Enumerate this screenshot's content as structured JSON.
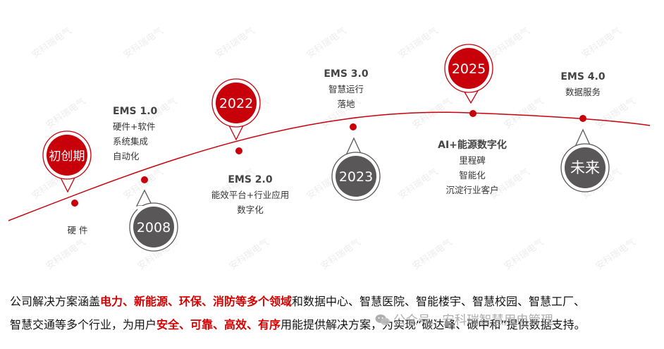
{
  "watermark": "安科瑞电气",
  "milestones": [
    {
      "badge": "初创期",
      "style": "red",
      "title": "",
      "lines": [
        "硬 件"
      ]
    },
    {
      "badge": "2008",
      "style": "gray",
      "title": "EMS 1.0",
      "lines": [
        "硬件+软件",
        "系统集成",
        "自动化"
      ]
    },
    {
      "badge": "2022",
      "style": "red",
      "title": "EMS 2.0",
      "lines": [
        "能效平台+行业应用",
        "数字化"
      ]
    },
    {
      "badge": "2023",
      "style": "gray",
      "title": "EMS 3.0",
      "lines": [
        "智慧运行",
        "落地"
      ]
    },
    {
      "badge": "2025",
      "style": "red",
      "title": "AI+能源数字化",
      "lines": [
        "里程碑",
        "智能化",
        "沉淀行业客户"
      ]
    },
    {
      "badge": "未来",
      "style": "gray",
      "title": "EMS 4.0",
      "lines": [
        "数据服务"
      ]
    }
  ],
  "footer": {
    "p1": "公司解决方案涵盖",
    "h1": "电力、新能源、环保、消防等多个领域",
    "p2": "和数据中心、智慧医院、智能楼宇、智慧校园、智慧工厂、",
    "p3": "智慧交通等多个行业，为用户",
    "h2": "安全、可靠、高效、有序",
    "p4": "用能提供解决方案，为实现“碳达峰、碳中和”提供数据支持。"
  },
  "wechat_watermark": "公众号 · 安科瑞智慧用电管理",
  "colors": {
    "red": "#c8000a",
    "gray": "#595757",
    "curve": "#c8000a"
  }
}
